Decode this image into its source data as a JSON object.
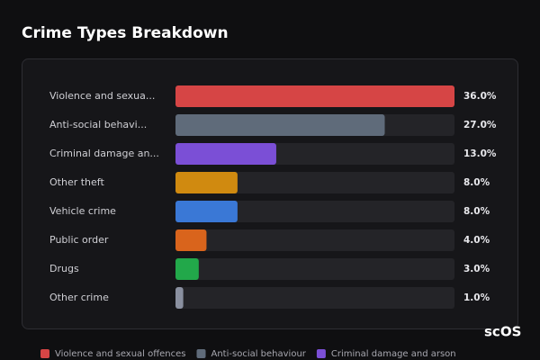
{
  "chart_data": {
    "type": "bar",
    "orientation": "horizontal",
    "title": "Crime Types Breakdown",
    "categories": [
      "Violence and sexua...",
      "Anti-social behavi...",
      "Criminal damage an...",
      "Other theft",
      "Vehicle crime",
      "Public order",
      "Drugs",
      "Other crime"
    ],
    "values": [
      36,
      27,
      13,
      8,
      8,
      4,
      3,
      1
    ],
    "value_labels": [
      "36.0%",
      "27.0%",
      "13.0%",
      "8.0%",
      "8.0%",
      "4.0%",
      "3.0%",
      "1.0%"
    ],
    "colors": [
      "#d64545",
      "#5f6b7a",
      "#7b4fd6",
      "#d08a10",
      "#3a78d6",
      "#d9641c",
      "#22a84a",
      "#8a90a0"
    ],
    "xlim": [
      0,
      36
    ],
    "legend": [
      {
        "name": "Violence and sexual offences",
        "color": "#d64545"
      },
      {
        "name": "Anti-social behaviour",
        "color": "#5f6b7a"
      },
      {
        "name": "Criminal damage and arson",
        "color": "#7b4fd6"
      }
    ],
    "watermark": "scOS"
  }
}
